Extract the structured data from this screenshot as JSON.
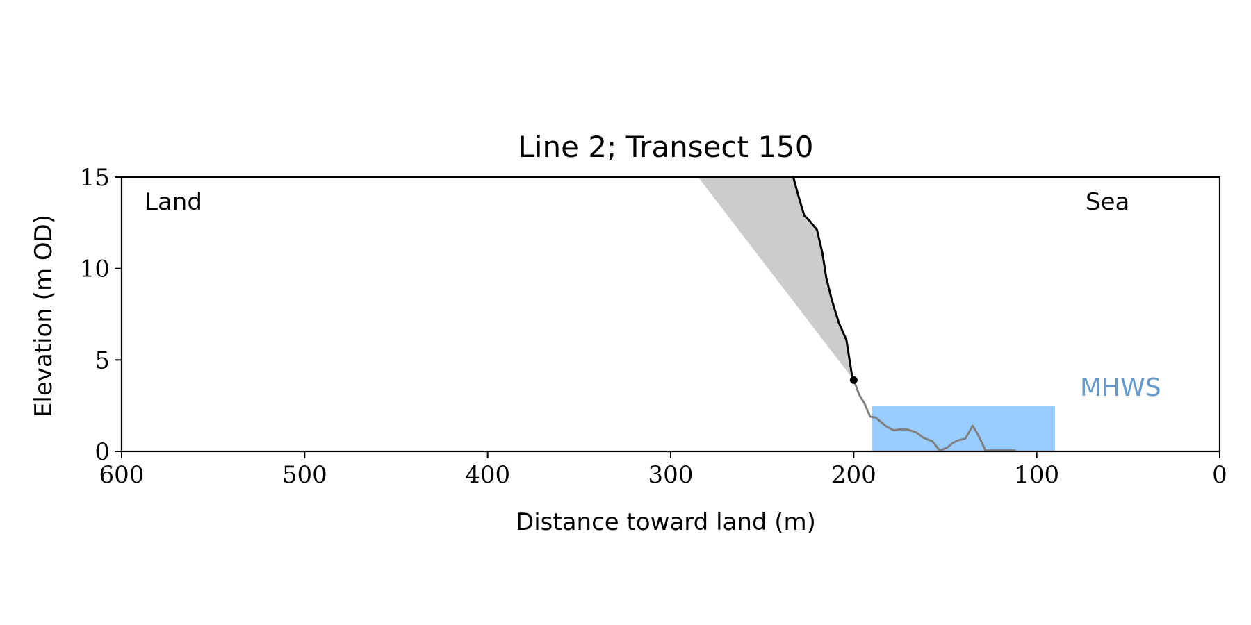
{
  "chart_data": {
    "type": "line",
    "title": "Line 2; Transect 150",
    "xlabel": "Distance toward land (m)",
    "ylabel": "Elevation (m OD)",
    "xlim": [
      600,
      0
    ],
    "ylim": [
      0,
      15
    ],
    "x_reversed": true,
    "x_ticks": [
      600,
      500,
      400,
      300,
      200,
      100,
      0
    ],
    "y_ticks": [
      0,
      5,
      10,
      15
    ],
    "grid": false,
    "annotations": {
      "land_label": "Land",
      "sea_label": "Sea",
      "mhws_label": "MHWS"
    },
    "colors": {
      "cliff": "#000000",
      "beach": "#808080",
      "shaded_wedge": "#cccccc",
      "mhws_fill": "#99ccff",
      "mhws_text": "#6699cc"
    },
    "series": [
      {
        "role": "cliff-profile",
        "x": [
          233,
          230,
          227,
          224,
          220,
          217,
          215,
          212,
          208,
          204,
          201,
          200
        ],
        "y": [
          15,
          13.9,
          12.9,
          12.6,
          12.1,
          10.8,
          9.5,
          8.3,
          7.0,
          6.1,
          4.2,
          3.9
        ]
      },
      {
        "role": "beach-profile",
        "x": [
          200,
          197,
          194,
          191,
          188,
          185,
          182,
          178,
          175,
          171,
          166,
          162,
          157,
          153,
          149,
          146,
          143,
          139,
          135,
          132,
          128,
          124,
          118,
          112
        ],
        "y": [
          3.9,
          3.1,
          2.6,
          1.9,
          1.85,
          1.6,
          1.35,
          1.15,
          1.2,
          1.2,
          1.05,
          0.75,
          0.55,
          0.05,
          0.2,
          0.45,
          0.6,
          0.7,
          1.4,
          0.9,
          0.05,
          0.05,
          0.05,
          0.05
        ]
      }
    ],
    "cliff_top_point": {
      "x": 200,
      "y": 3.9
    },
    "shaded_wedge": {
      "points": [
        [
          285,
          15
        ],
        [
          233,
          15
        ],
        [
          230,
          13.9
        ],
        [
          227,
          12.9
        ],
        [
          224,
          12.6
        ],
        [
          220,
          12.1
        ],
        [
          217,
          10.8
        ],
        [
          215,
          9.5
        ],
        [
          212,
          8.3
        ],
        [
          208,
          7.0
        ],
        [
          204,
          6.1
        ],
        [
          201,
          4.2
        ],
        [
          200,
          3.9
        ]
      ]
    },
    "mhws_region": {
      "x_from": 190,
      "x_to": 90,
      "y_from": 0,
      "y_to": 2.5
    }
  }
}
